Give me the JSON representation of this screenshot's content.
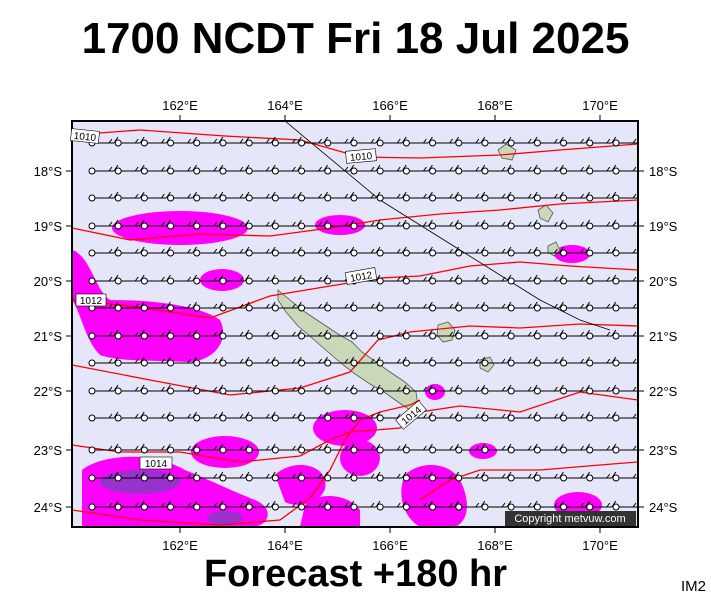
{
  "title": "1700 NCDT Fri 18 Jul 2025",
  "footer": "Forecast +180 hr",
  "map_code": "IM2",
  "copyright": "Copyright metvuw.com",
  "colors": {
    "ocean": "#e6e6fa",
    "isobar": "#ff0000",
    "rain": "#ff00ff",
    "rain_heavy": "#9932cc",
    "land": "#c8d8b8",
    "wind": "#000000"
  },
  "axes": {
    "longitudes": [
      "162°E",
      "164°E",
      "166°E",
      "168°E",
      "170°E"
    ],
    "latitudes": [
      "18°S",
      "19°S",
      "20°S",
      "21°S",
      "22°S",
      "23°S",
      "24°S"
    ]
  },
  "isobar_labels": [
    "1010",
    "1010",
    "1012",
    "1012",
    "1014",
    "1014"
  ]
}
